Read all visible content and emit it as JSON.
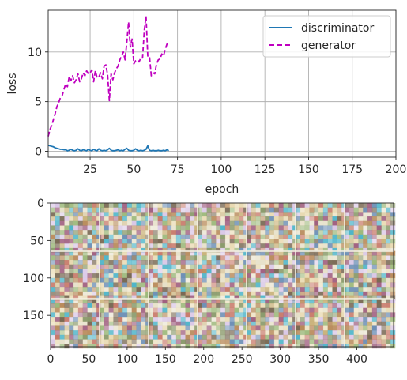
{
  "chart_data": [
    {
      "type": "line",
      "title": "",
      "xlabel": "epoch",
      "ylabel": "loss",
      "xlim": [
        1,
        200
      ],
      "ylim": [
        -0.6,
        14.2
      ],
      "xticks": [
        25,
        50,
        75,
        100,
        125,
        150,
        175,
        200
      ],
      "yticks": [
        0,
        5,
        10
      ],
      "grid": true,
      "legend_position": "top-right",
      "series": [
        {
          "name": "discriminator",
          "color": "#1f77b4",
          "style": "solid",
          "x": [
            1,
            2,
            3,
            4,
            5,
            6,
            7,
            8,
            9,
            10,
            11,
            12,
            13,
            14,
            15,
            16,
            17,
            18,
            19,
            20,
            21,
            22,
            23,
            24,
            25,
            26,
            27,
            28,
            29,
            30,
            31,
            32,
            33,
            34,
            35,
            36,
            37,
            38,
            39,
            40,
            41,
            42,
            43,
            44,
            45,
            46,
            47,
            48,
            49,
            50,
            51,
            52,
            53,
            54,
            55,
            56,
            57,
            58,
            59,
            60,
            61,
            62,
            63,
            64,
            65,
            66,
            67,
            68,
            69,
            70
          ],
          "y": [
            0.6,
            0.55,
            0.5,
            0.45,
            0.35,
            0.3,
            0.25,
            0.2,
            0.2,
            0.15,
            0.15,
            0.05,
            0.1,
            0.2,
            0.1,
            0.05,
            0.1,
            0.25,
            0.1,
            0.05,
            0.15,
            0.1,
            0.05,
            0.2,
            0.1,
            0.05,
            0.2,
            0.1,
            0.05,
            0.25,
            0.1,
            0.05,
            0.1,
            0.05,
            0.15,
            0.3,
            0.1,
            0.05,
            0.05,
            0.1,
            0.15,
            0.05,
            0.1,
            0.05,
            0.2,
            0.3,
            0.1,
            0.05,
            0.05,
            0.1,
            0.25,
            0.1,
            0.05,
            0.1,
            0.05,
            0.1,
            0.2,
            0.55,
            0.1,
            0.05,
            0.1,
            0.05,
            0.05,
            0.1,
            0.05,
            0.05,
            0.1,
            0.05,
            0.15,
            0.05
          ]
        },
        {
          "name": "generator",
          "color": "#bf00bf",
          "style": "dashed",
          "x": [
            1,
            2,
            3,
            4,
            5,
            6,
            7,
            8,
            9,
            10,
            11,
            12,
            13,
            14,
            15,
            16,
            17,
            18,
            19,
            20,
            21,
            22,
            23,
            24,
            25,
            26,
            27,
            28,
            29,
            30,
            31,
            32,
            33,
            34,
            35,
            36,
            37,
            38,
            39,
            40,
            41,
            42,
            43,
            44,
            45,
            46,
            47,
            48,
            49,
            50,
            51,
            52,
            53,
            54,
            55,
            56,
            57,
            58,
            59,
            60,
            61,
            62,
            63,
            64,
            65,
            66,
            67,
            68,
            69,
            70
          ],
          "y": [
            1.5,
            2.2,
            2.6,
            3.2,
            3.8,
            4.5,
            4.9,
            5.4,
            5.6,
            6.2,
            6.8,
            6.5,
            7.5,
            7.1,
            7.6,
            6.9,
            7.2,
            7.8,
            7.0,
            7.3,
            7.9,
            7.6,
            8.1,
            7.8,
            7.9,
            8.2,
            7.0,
            8.1,
            7.4,
            7.5,
            7.9,
            7.3,
            8.6,
            8.7,
            7.7,
            5.1,
            7.8,
            7.2,
            7.9,
            8.3,
            8.6,
            9.2,
            9.6,
            10.0,
            9.2,
            11.0,
            13.0,
            10.5,
            11.3,
            8.8,
            9.1,
            9.2,
            9.0,
            9.4,
            9.4,
            12.2,
            13.6,
            9.5,
            9.5,
            7.6,
            7.9,
            7.8,
            8.8,
            9.2,
            9.3,
            9.8,
            9.6,
            10.3,
            10.8,
            10.7
          ]
        }
      ]
    },
    {
      "type": "heatmap",
      "title": "",
      "xlabel": "",
      "ylabel": "",
      "xlim": [
        0,
        448
      ],
      "ylim": [
        192,
        0
      ],
      "xticks": [
        0,
        50,
        100,
        150,
        200,
        250,
        300,
        350,
        400
      ],
      "yticks": [
        0,
        50,
        100,
        150
      ],
      "grid": false,
      "grid_rows": 3,
      "grid_cols": 7,
      "tile_size": 64,
      "palette": [
        "#e8d9b0",
        "#b88a5a",
        "#8a9a6b",
        "#a06080",
        "#6d8fb5",
        "#c9b27a",
        "#7a6a55",
        "#d9c7e6",
        "#9cb87a",
        "#4fb5c9",
        "#c87a6a",
        "#e6e0c8"
      ]
    }
  ]
}
